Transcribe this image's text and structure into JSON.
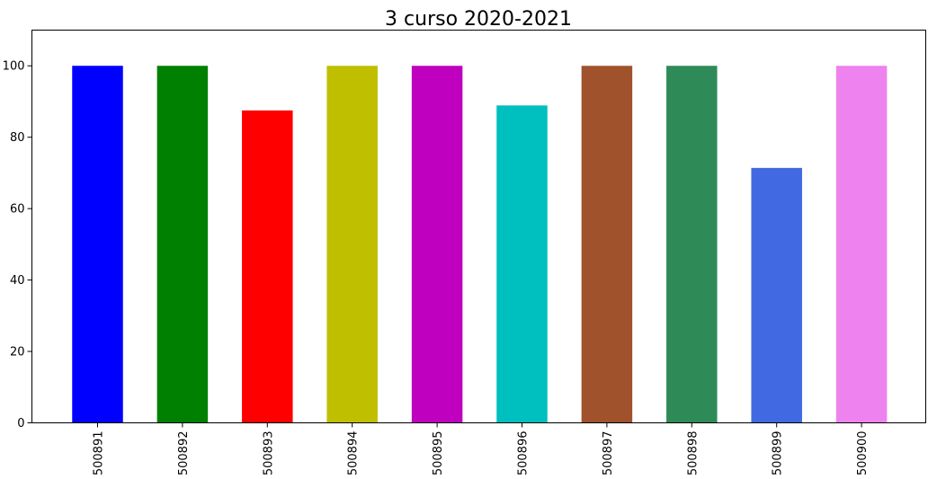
{
  "chart_data": {
    "type": "bar",
    "title": "3 curso 2020-2021",
    "xlabel": "",
    "ylabel": "",
    "categories": [
      "500891",
      "500892",
      "500893",
      "500894",
      "500895",
      "500896",
      "500897",
      "500898",
      "500899",
      "500900"
    ],
    "values": [
      100,
      100,
      87.5,
      100,
      100,
      88.9,
      100,
      100,
      71.4,
      100
    ],
    "colors": [
      "#0000ff",
      "#008000",
      "#ff0000",
      "#bfbf00",
      "#bf00bf",
      "#00bfbf",
      "#a0522d",
      "#2e8b57",
      "#4169e1",
      "#ee82ee"
    ],
    "ylim": [
      0,
      110
    ],
    "yticks": [
      0,
      20,
      40,
      60,
      80,
      100
    ],
    "grid": false,
    "legend": "none"
  }
}
